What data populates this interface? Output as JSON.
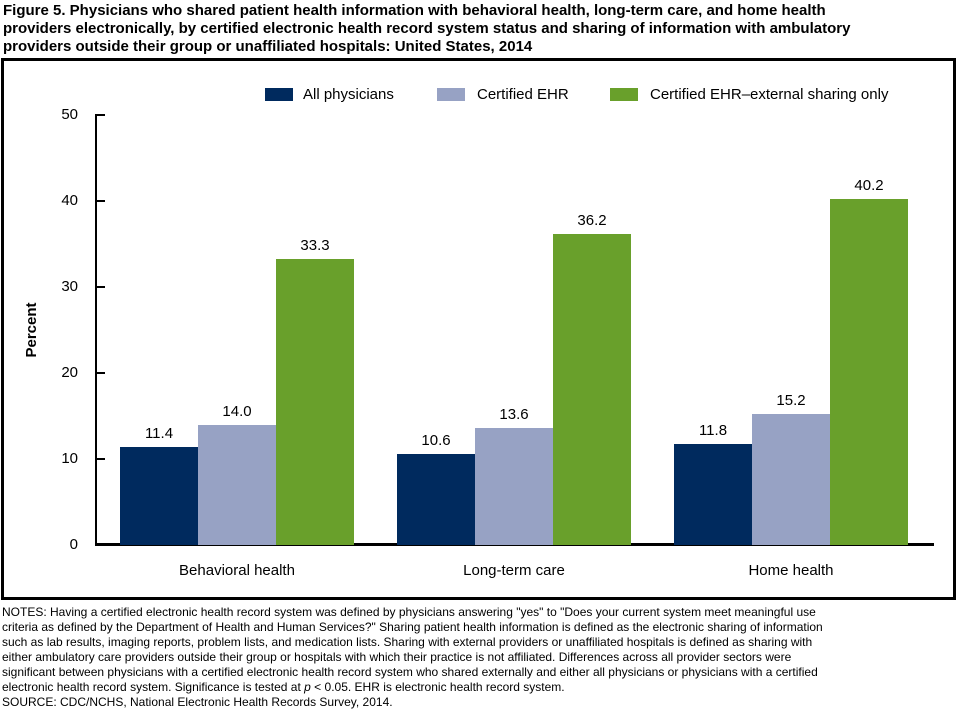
{
  "figure": {
    "title_lines": [
      "Figure 5. Physicians who shared patient health information with behavioral health, long-term care, and home health",
      "providers electronically, by certified electronic health record system status and sharing of information with ambulatory",
      "providers outside their group or unaffiliated hospitals: United States, 2014"
    ]
  },
  "chart_data": {
    "type": "bar",
    "categories": [
      "Behavioral health",
      "Long-term care",
      "Home health"
    ],
    "series": [
      {
        "name": "All physicians",
        "color": "#002a5e",
        "values": [
          11.4,
          10.6,
          11.8
        ]
      },
      {
        "name": "Certified EHR",
        "color": "#97a2c4",
        "values": [
          14.0,
          13.6,
          15.2
        ]
      },
      {
        "name": "Certified EHR–external sharing only",
        "color": "#69a02b",
        "values": [
          33.3,
          36.2,
          40.2
        ]
      }
    ],
    "ylabel": "Percent",
    "ylim": [
      0,
      50
    ],
    "yticks": [
      0,
      10,
      20,
      30,
      40,
      50
    ],
    "grid": false,
    "legend_position": "top",
    "value_label_format": "one_decimal"
  },
  "notes": {
    "lines": [
      "NOTES: Having a certified electronic health record system was defined by physicians answering \"yes\" to \"Does your current system meet meaningful use",
      "criteria as defined by the Department of Health and Human Services?\" Sharing patient health information is defined as the electronic sharing of information",
      "such as lab results, imaging reports, problem lists, and medication lists. Sharing with external providers or unaffiliated hospitals is defined as sharing with",
      "either ambulatory care providers outside their group or hospitals with which their practice is not affiliated. Differences across all provider sectors were",
      "significant between physicians with a certified electronic health record system who shared externally and either all physicians or physicians with a certified",
      [
        {
          "t": "electronic health record system. Significance is tested at "
        },
        {
          "t": "p",
          "i": true
        },
        {
          "t": " < 0.05. EHR is electronic health record system."
        }
      ]
    ],
    "source": "SOURCE: CDC/NCHS, National Electronic Health Records Survey, 2014."
  }
}
